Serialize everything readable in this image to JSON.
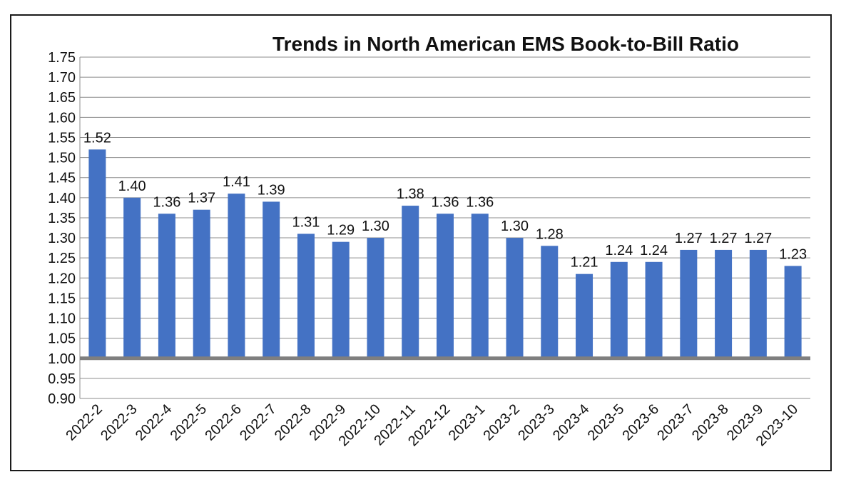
{
  "chart_data": {
    "type": "bar",
    "title": "Trends in North American EMS Book-to-Bill Ratio",
    "xlabel": "",
    "ylabel": "",
    "categories": [
      "2022-2",
      "2022-3",
      "2022-4",
      "2022-5",
      "2022-6",
      "2022-7",
      "2022-8",
      "2022-9",
      "2022-10",
      "2022-11",
      "2022-12",
      "2023-1",
      "2023-2",
      "2023-3",
      "2023-4",
      "2023-5",
      "2023-6",
      "2023-7",
      "2023-8",
      "2023-9",
      "2023-10"
    ],
    "values": [
      1.52,
      1.4,
      1.36,
      1.37,
      1.41,
      1.39,
      1.31,
      1.29,
      1.3,
      1.38,
      1.36,
      1.36,
      1.3,
      1.28,
      1.21,
      1.24,
      1.24,
      1.27,
      1.27,
      1.27,
      1.23
    ],
    "data_labels": [
      "1.52",
      "1.40",
      "1.36",
      "1.37",
      "1.41",
      "1.39",
      "1.31",
      "1.29",
      "1.30",
      "1.38",
      "1.36",
      "1.36",
      "1.30",
      "1.28",
      "1.21",
      "1.24",
      "1.24",
      "1.27",
      "1.27",
      "1.27",
      "1.23"
    ],
    "y_ticks": [
      "0.90",
      "0.95",
      "1.00",
      "1.05",
      "1.10",
      "1.15",
      "1.20",
      "1.25",
      "1.30",
      "1.35",
      "1.40",
      "1.45",
      "1.50",
      "1.55",
      "1.60",
      "1.65",
      "1.70",
      "1.75"
    ],
    "ylim": [
      0.9,
      1.75
    ],
    "baseline": 1.0,
    "grid": true,
    "legend": "none",
    "colors": {
      "bar": "#4472C4",
      "baseline": "#7f7f7f",
      "grid": "#8c8c8c"
    }
  }
}
